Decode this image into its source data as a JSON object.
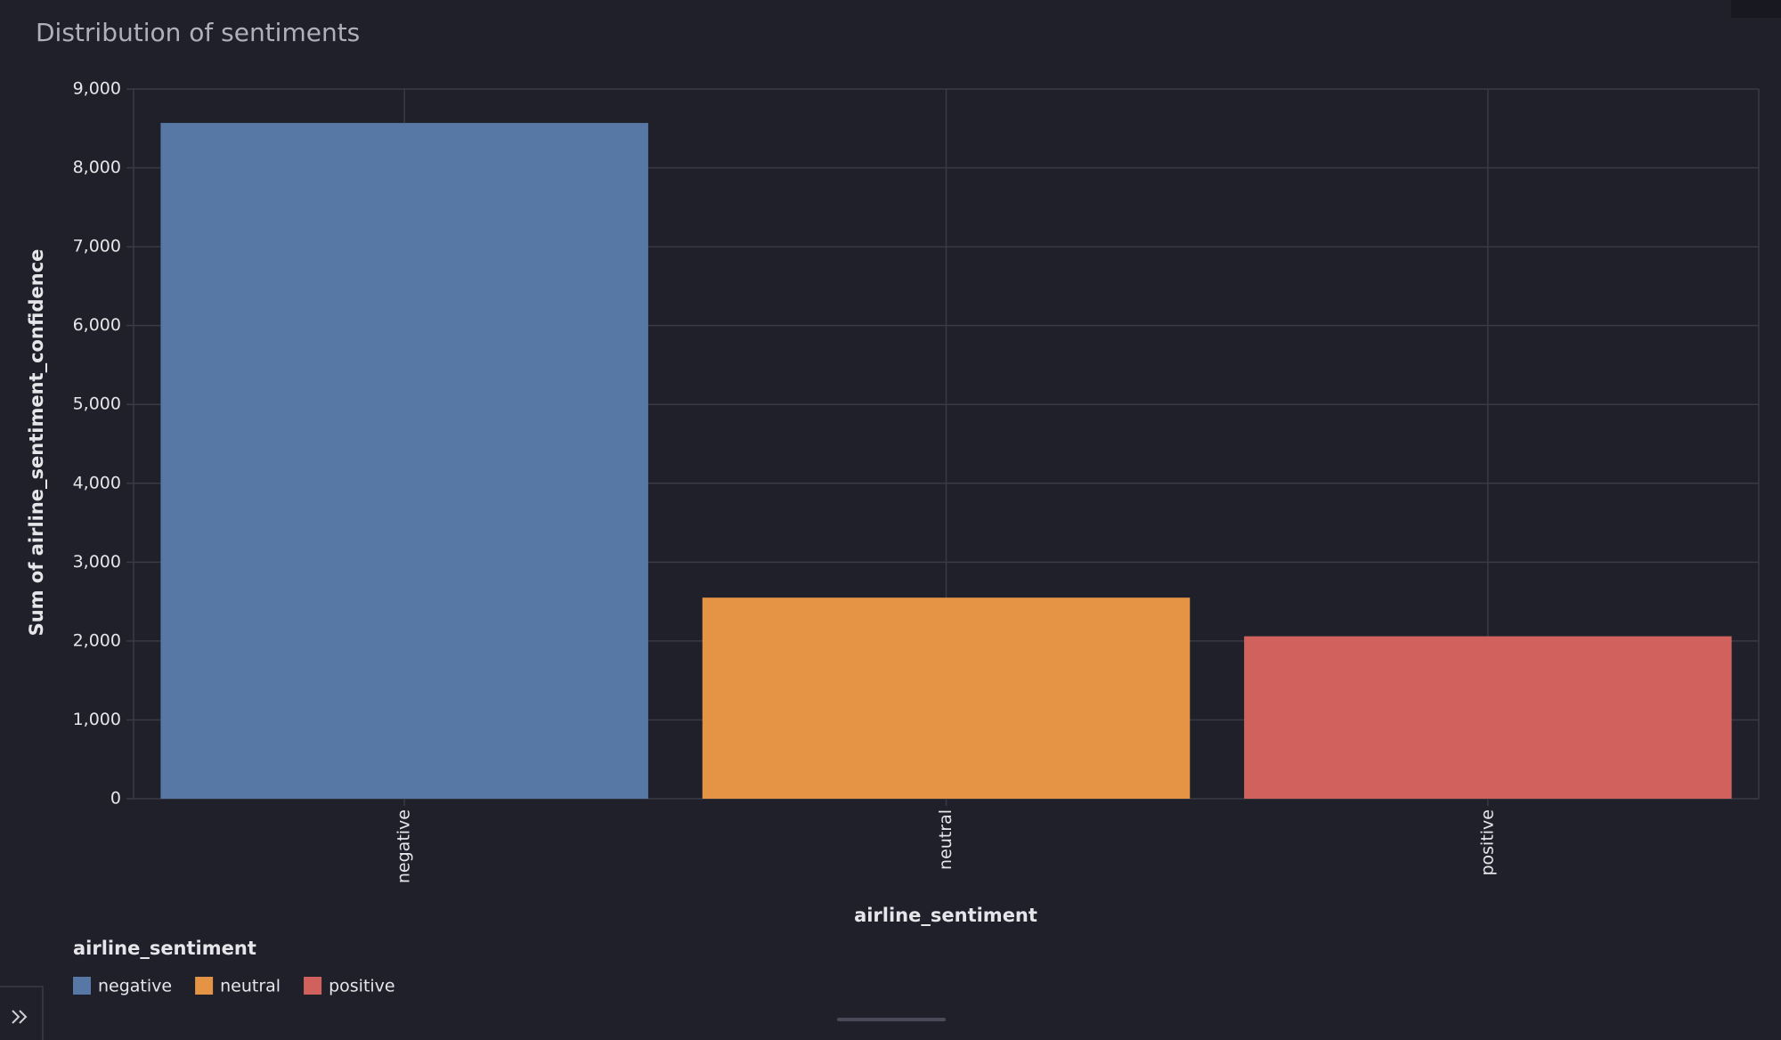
{
  "chart_data": {
    "type": "bar",
    "title": "Distribution of sentiments",
    "x_label": "airline_sentiment",
    "y_label": "Sum of airline_sentiment_confidence",
    "categories": [
      "negative",
      "neutral",
      "positive"
    ],
    "values": [
      8570,
      2550,
      2060
    ],
    "colors": [
      "#5778a4",
      "#e49444",
      "#d1615d"
    ],
    "ylim": [
      0,
      9000
    ],
    "yticks": [
      {
        "value": 0,
        "label": "0"
      },
      {
        "value": 1000,
        "label": "1,000"
      },
      {
        "value": 2000,
        "label": "2,000"
      },
      {
        "value": 3000,
        "label": "3,000"
      },
      {
        "value": 4000,
        "label": "4,000"
      },
      {
        "value": 5000,
        "label": "5,000"
      },
      {
        "value": 6000,
        "label": "6,000"
      },
      {
        "value": 7000,
        "label": "7,000"
      },
      {
        "value": 8000,
        "label": "8,000"
      },
      {
        "value": 9000,
        "label": "9,000"
      }
    ],
    "grid": true,
    "legend_title": "airline_sentiment"
  }
}
